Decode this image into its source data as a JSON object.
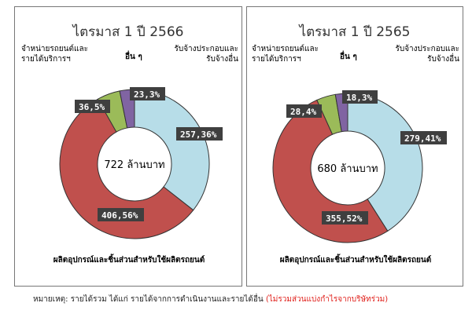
{
  "chart_data": [
    {
      "type": "pie",
      "title": "ไตรมาส 1 ปี 2566",
      "center_label": "722  ล้านบาท",
      "categories": [
        "รับจ้างประกอบและรับจ้างอื่น",
        "ผลิตอุปกรณ์และชิ้นส่วนสำหรับใช้ผลิตรถยนต์",
        "จำหน่ายรถยนต์และรายได้บริการฯ",
        "อื่น ๆ"
      ],
      "values": [
        257,
        406,
        36,
        23
      ],
      "percents": [
        36,
        56,
        5,
        3
      ],
      "data_labels": [
        "257,36%",
        "406,56%",
        "36,5%",
        "23,3%"
      ]
    },
    {
      "type": "pie",
      "title": "ไตรมาส 1 ปี 2565",
      "center_label": "680  ล้านบาท",
      "categories": [
        "รับจ้างประกอบและรับจ้างอื่น",
        "ผลิตอุปกรณ์และชิ้นส่วนสำหรับใช้ผลิตรถยนต์",
        "จำหน่ายรถยนต์และรายได้บริการฯ",
        "อื่น ๆ"
      ],
      "values": [
        279,
        355,
        28,
        18
      ],
      "percents": [
        41,
        52,
        4,
        3
      ],
      "data_labels": [
        "279,41%",
        "355,52%",
        "28,4%",
        "18,3%"
      ]
    }
  ],
  "colors": [
    "#b7dde8",
    "#c0504d",
    "#9bbb59",
    "#8064a2"
  ],
  "note": {
    "text": "หมายเหตุ: รายได้รวม ได้แก่ รายได้จากการดำเนินงานและรายได้อื่น ",
    "highlight": "(ไม่รวมส่วนแบ่งกำไรจากบริษัทร่วม)"
  }
}
